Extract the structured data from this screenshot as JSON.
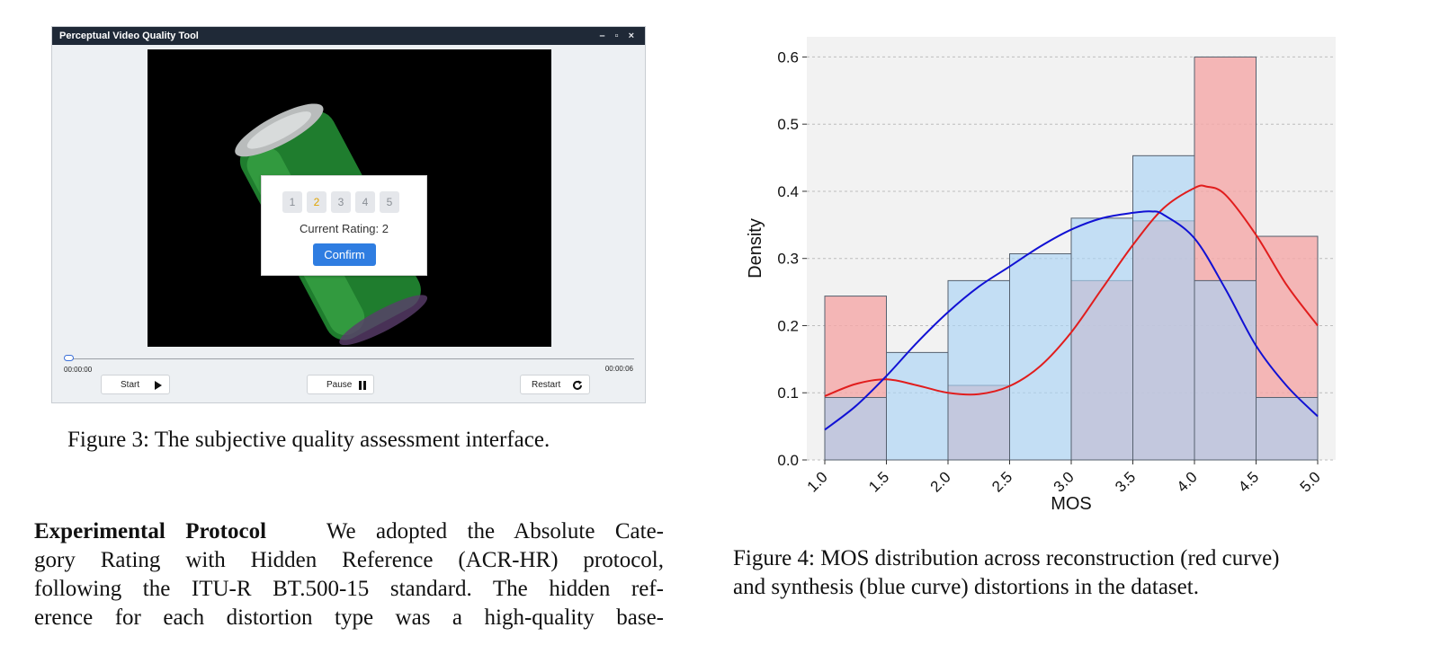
{
  "app": {
    "title": "Perceptual Video Quality Tool",
    "window_controls": "– ▫ ×",
    "rating_options": [
      "1",
      "2",
      "3",
      "4",
      "5"
    ],
    "selected_rating": "2",
    "current_rating_text": "Current Rating: 2",
    "confirm_label": "Confirm",
    "time_start": "00:00:00",
    "time_end": "00:00:06",
    "progress": 0,
    "start_label": "Start",
    "pause_label": "Pause",
    "restart_label": "Restart",
    "colors": {
      "titlebar": "#1f2937",
      "accent": "#2f7de1",
      "selected_rating": "#e0a400"
    }
  },
  "fig3_caption": "Figure 3: The subjective quality assessment interface.",
  "paragraph": {
    "heading": "Experimental Protocol",
    "lines": [
      "We adopted the Absolute Cate-",
      "gory Rating with Hidden Reference (ACR-HR) protocol,",
      "following the ITU-R BT.500-15 standard. The hidden ref-",
      "erence for each distortion type was a high-quality base-"
    ]
  },
  "fig4_caption_lines": [
    "Figure 4: MOS distribution across reconstruction (red curve)",
    "and synthesis (blue curve) distortions in the dataset."
  ],
  "chart_data": {
    "type": "bar",
    "xlabel": "MOS",
    "ylabel": "Density",
    "xlim": [
      1.0,
      5.0
    ],
    "ylim": [
      0.0,
      0.63
    ],
    "xticks": [
      "1.0",
      "1.5",
      "2.0",
      "2.5",
      "3.0",
      "3.5",
      "4.0",
      "4.5",
      "5.0"
    ],
    "yticks": [
      "0.0",
      "0.1",
      "0.2",
      "0.3",
      "0.4",
      "0.5",
      "0.6"
    ],
    "grid": true,
    "bin_edges": [
      1.0,
      1.5,
      2.0,
      2.5,
      3.0,
      3.5,
      4.0,
      4.5,
      5.0
    ],
    "series": [
      {
        "color": "#f4a6a6",
        "curve_color": "#e11d1d",
        "values": [
          0.244,
          0.0,
          0.111,
          0.0,
          0.267,
          0.356,
          0.6,
          0.333
        ],
        "kde": [
          [
            1.0,
            0.095
          ],
          [
            1.25,
            0.113
          ],
          [
            1.5,
            0.12
          ],
          [
            1.75,
            0.111
          ],
          [
            2.0,
            0.1
          ],
          [
            2.25,
            0.098
          ],
          [
            2.5,
            0.11
          ],
          [
            2.75,
            0.14
          ],
          [
            3.0,
            0.19
          ],
          [
            3.25,
            0.255
          ],
          [
            3.5,
            0.32
          ],
          [
            3.75,
            0.375
          ],
          [
            4.0,
            0.405
          ],
          [
            4.1,
            0.407
          ],
          [
            4.25,
            0.395
          ],
          [
            4.5,
            0.335
          ],
          [
            4.75,
            0.26
          ],
          [
            5.0,
            0.2
          ]
        ]
      },
      {
        "color": "#a9d2f5",
        "curve_color": "#1111d4",
        "values": [
          0.093,
          0.16,
          0.267,
          0.307,
          0.36,
          0.453,
          0.267,
          0.093
        ],
        "kde": [
          [
            1.0,
            0.045
          ],
          [
            1.25,
            0.08
          ],
          [
            1.5,
            0.125
          ],
          [
            1.75,
            0.175
          ],
          [
            2.0,
            0.22
          ],
          [
            2.25,
            0.258
          ],
          [
            2.5,
            0.288
          ],
          [
            2.75,
            0.318
          ],
          [
            3.0,
            0.343
          ],
          [
            3.25,
            0.36
          ],
          [
            3.5,
            0.368
          ],
          [
            3.65,
            0.37
          ],
          [
            3.75,
            0.365
          ],
          [
            4.0,
            0.33
          ],
          [
            4.25,
            0.255
          ],
          [
            4.5,
            0.17
          ],
          [
            4.75,
            0.11
          ],
          [
            5.0,
            0.065
          ]
        ]
      }
    ]
  }
}
